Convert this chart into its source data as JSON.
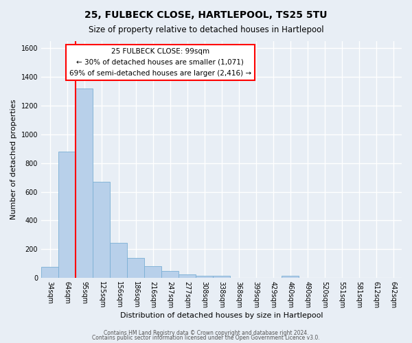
{
  "title": "25, FULBECK CLOSE, HARTLEPOOL, TS25 5TU",
  "subtitle": "Size of property relative to detached houses in Hartlepool",
  "xlabel": "Distribution of detached houses by size in Hartlepool",
  "ylabel": "Number of detached properties",
  "bar_labels": [
    "34sqm",
    "64sqm",
    "95sqm",
    "125sqm",
    "156sqm",
    "186sqm",
    "216sqm",
    "247sqm",
    "277sqm",
    "308sqm",
    "338sqm",
    "368sqm",
    "399sqm",
    "429sqm",
    "460sqm",
    "490sqm",
    "520sqm",
    "551sqm",
    "581sqm",
    "612sqm",
    "642sqm"
  ],
  "bar_values": [
    75,
    880,
    1320,
    670,
    245,
    140,
    80,
    50,
    25,
    15,
    15,
    0,
    0,
    0,
    15,
    0,
    0,
    0,
    0,
    0,
    0
  ],
  "bar_color": "#b8d0ea",
  "bar_edge_color": "#7aafd4",
  "ylim": [
    0,
    1650
  ],
  "yticks": [
    0,
    200,
    400,
    600,
    800,
    1000,
    1200,
    1400,
    1600
  ],
  "vline_x_index": 2,
  "vline_color": "red",
  "annotation_title": "25 FULBECK CLOSE: 99sqm",
  "annotation_line1": "← 30% of detached houses are smaller (1,071)",
  "annotation_line2": "69% of semi-detached houses are larger (2,416) →",
  "annotation_box_color": "white",
  "annotation_box_edge_color": "red",
  "footer1": "Contains HM Land Registry data © Crown copyright and database right 2024.",
  "footer2": "Contains public sector information licensed under the Open Government Licence v3.0.",
  "background_color": "#e8eef5",
  "grid_color": "#c8d4e0"
}
